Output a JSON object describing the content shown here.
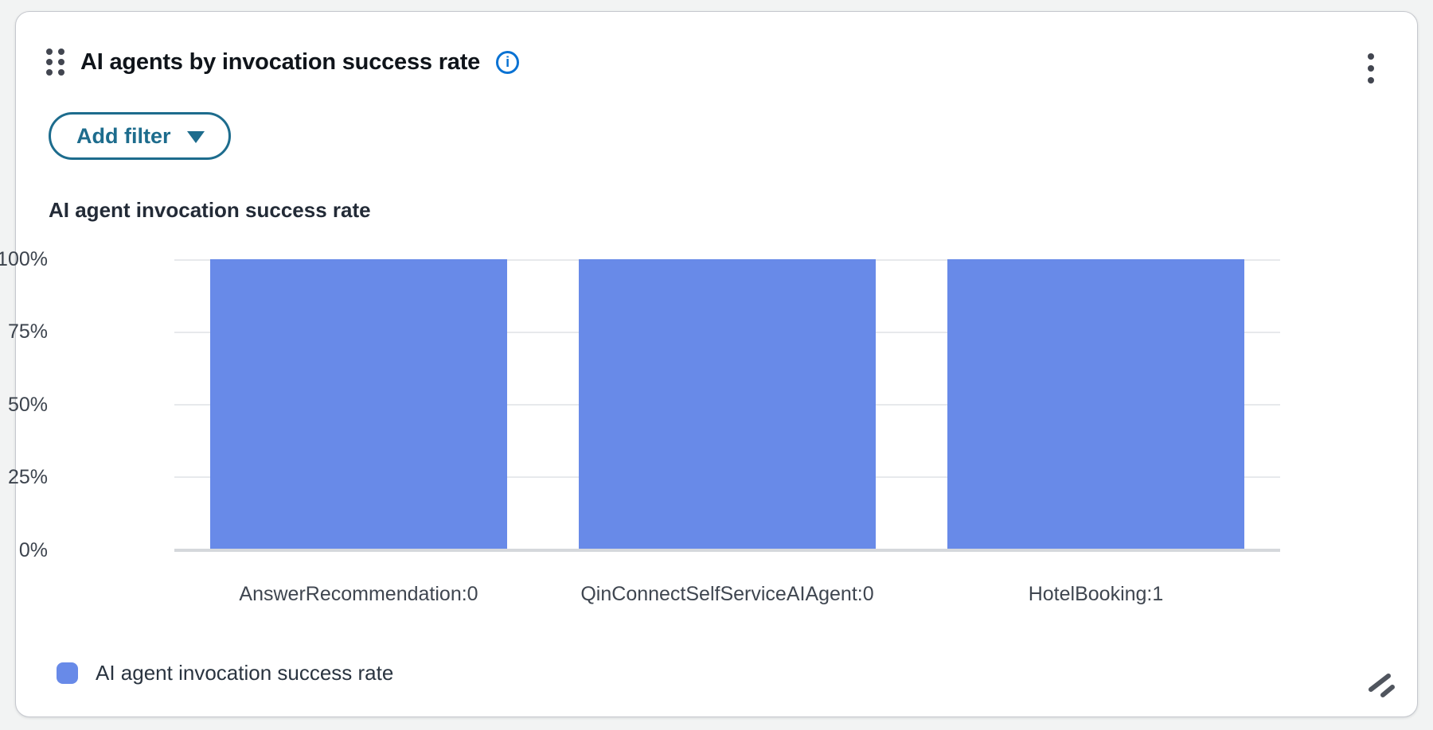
{
  "widget": {
    "title": "AI agents by invocation success rate",
    "filter_button_label": "Add filter",
    "chart_title": "AI agent invocation success rate"
  },
  "chart_data": {
    "type": "bar",
    "title": "AI agent invocation success rate",
    "categories": [
      "AnswerRecommendation:0",
      "QinConnectSelfServiceAIAgent:0",
      "HotelBooking:1"
    ],
    "values": [
      100,
      100,
      100
    ],
    "unit": "%",
    "ylim": [
      0,
      100
    ],
    "y_ticks": [
      "100%",
      "75%",
      "50%",
      "25%",
      "0%"
    ],
    "xlabel": "",
    "ylabel": "",
    "grid": true,
    "bar_color": "#688AE8",
    "legend": {
      "position": "bottom-left",
      "entries": [
        {
          "label": "AI agent invocation success rate",
          "color": "#688AE8"
        }
      ]
    }
  },
  "colors": {
    "page-bg": "#f2f3f3",
    "info-blue": "#0972d3",
    "teal": "#1d6c8d",
    "bar": "#688AE8",
    "grid": "#e7e9ec",
    "text-dark": "#0f141a"
  }
}
